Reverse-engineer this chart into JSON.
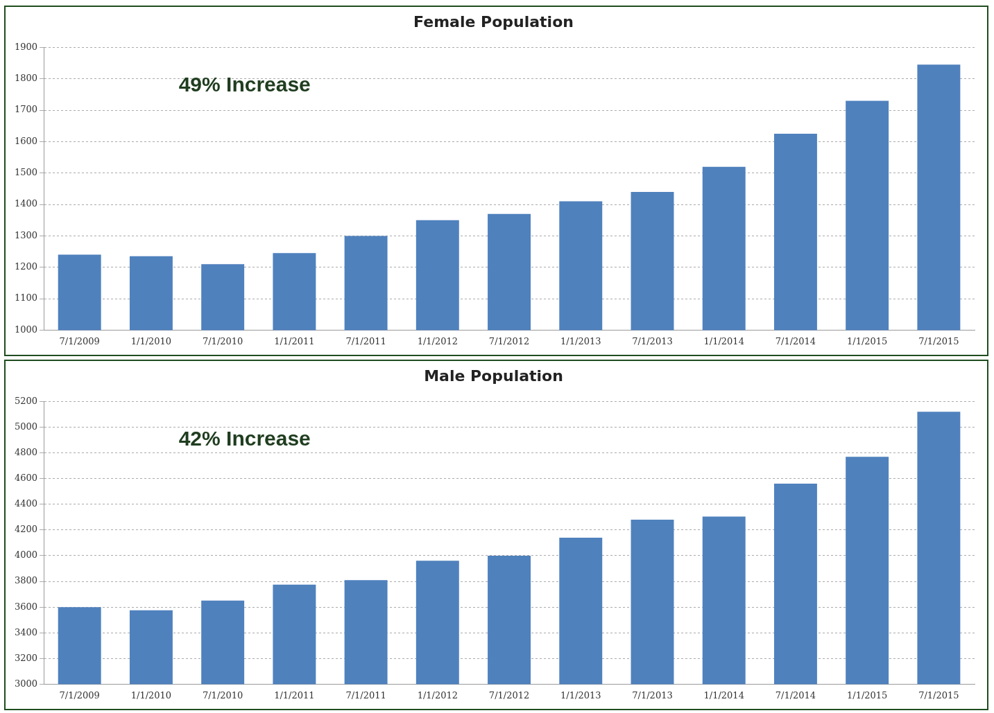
{
  "chart_data": [
    {
      "type": "bar",
      "title": "Female Population",
      "annotations": [
        "49% Increase"
      ],
      "categories": [
        "7/1/2009",
        "1/1/2010",
        "7/1/2010",
        "1/1/2011",
        "7/1/2011",
        "1/1/2012",
        "7/1/2012",
        "1/1/2013",
        "7/1/2013",
        "1/1/2014",
        "7/1/2014",
        "1/1/2015",
        "7/1/2015"
      ],
      "values": [
        1240,
        1235,
        1210,
        1245,
        1300,
        1350,
        1370,
        1410,
        1440,
        1520,
        1625,
        1730,
        1845
      ],
      "color": "#4f81bd",
      "ylim": [
        1000,
        1900
      ],
      "yticks": [
        1000,
        1100,
        1200,
        1300,
        1400,
        1500,
        1600,
        1700,
        1800,
        1900
      ],
      "grid": "y"
    },
    {
      "type": "bar",
      "title": "Male Population",
      "annotations": [
        "42% Increase"
      ],
      "categories": [
        "7/1/2009",
        "1/1/2010",
        "7/1/2010",
        "1/1/2011",
        "7/1/2011",
        "1/1/2012",
        "7/1/2012",
        "1/1/2013",
        "7/1/2013",
        "1/1/2014",
        "7/1/2014",
        "1/1/2015",
        "7/1/2015"
      ],
      "values": [
        3600,
        3575,
        3650,
        3775,
        3810,
        3960,
        4000,
        4140,
        4280,
        4305,
        4560,
        4770,
        5120
      ],
      "color": "#4f81bd",
      "ylim": [
        3000,
        5200
      ],
      "yticks": [
        3000,
        3200,
        3400,
        3600,
        3800,
        4000,
        4200,
        4400,
        4600,
        4800,
        5000,
        5200
      ],
      "grid": "y"
    }
  ]
}
